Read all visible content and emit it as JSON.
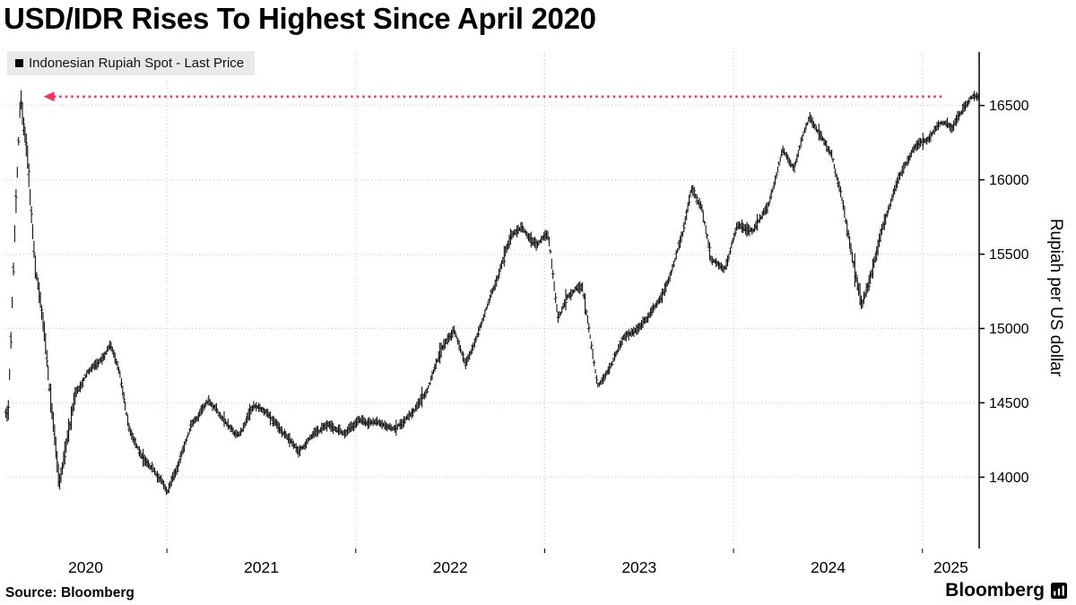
{
  "header": {
    "title": "USD/IDR Rises To Highest Since April 2020"
  },
  "legend": {
    "marker_color": "#000000",
    "label": "Indonesian Rupiah Spot - Last Price"
  },
  "footer": {
    "source": "Source: Bloomberg",
    "brand": "Bloomberg"
  },
  "chart_data": {
    "type": "bar",
    "subtype": "daily-ohlc-price-bars",
    "title": "USD/IDR Rises To Highest Since April 2020",
    "xlabel": "",
    "ylabel": "Rupiah per US dollar",
    "legend_entries": [
      "Indonesian Rupiah Spot - Last Price"
    ],
    "legend_position": "top-left",
    "axis_side": "right",
    "grid": true,
    "x_domain": [
      2020.145,
      2025.3
    ],
    "y_domain": [
      13520,
      16860
    ],
    "y_ticks": [
      14000,
      14500,
      15000,
      15500,
      16000,
      16500
    ],
    "x_ticks": [
      {
        "label": "2020",
        "t": 2020.57
      },
      {
        "label": "2021",
        "t": 2021.5
      },
      {
        "label": "2022",
        "t": 2022.5
      },
      {
        "label": "2023",
        "t": 2023.5
      },
      {
        "label": "2024",
        "t": 2024.5
      },
      {
        "label": "2025",
        "t": 2025.15
      }
    ],
    "year_boundaries": [
      2021,
      2022,
      2023,
      2024,
      2025
    ],
    "annotation": {
      "type": "dotted-arrow-line",
      "value": 16560,
      "t_start": 2020.4,
      "t_end": 2025.11,
      "color": "#f5305a",
      "arrow_direction": "left",
      "meaning": "April 2020 high revisited"
    },
    "series": [
      {
        "name": "Indonesian Rupiah Spot - Last Price",
        "color": "#000000",
        "anchors_t": [
          2020.16,
          2020.19,
          2020.225,
          2020.26,
          2020.3,
          2020.35,
          2020.43,
          2020.47,
          2020.52,
          2020.58,
          2020.64,
          2020.7,
          2020.75,
          2020.8,
          2020.86,
          2020.93,
          2021.0,
          2021.06,
          2021.13,
          2021.22,
          2021.3,
          2021.38,
          2021.46,
          2021.54,
          2021.62,
          2021.7,
          2021.78,
          2021.86,
          2021.94,
          2022.02,
          2022.12,
          2022.22,
          2022.3,
          2022.38,
          2022.46,
          2022.52,
          2022.58,
          2022.66,
          2022.74,
          2022.82,
          2022.88,
          2022.96,
          2023.02,
          2023.07,
          2023.13,
          2023.2,
          2023.28,
          2023.34,
          2023.42,
          2023.5,
          2023.58,
          2023.66,
          2023.73,
          2023.78,
          2023.83,
          2023.88,
          2023.95,
          2024.02,
          2024.1,
          2024.18,
          2024.26,
          2024.32,
          2024.4,
          2024.46,
          2024.52,
          2024.58,
          2024.63,
          2024.68,
          2024.73,
          2024.79,
          2024.85,
          2024.91,
          2024.97,
          2025.04,
          2025.1,
          2025.16,
          2025.21,
          2025.255
        ],
        "anchors_price": [
          14450,
          15500,
          16590,
          16200,
          15450,
          14950,
          13950,
          14200,
          14500,
          14650,
          14750,
          14880,
          14700,
          14350,
          14150,
          14080,
          13940,
          14080,
          14350,
          14520,
          14380,
          14280,
          14480,
          14420,
          14280,
          14170,
          14290,
          14330,
          14280,
          14360,
          14360,
          14340,
          14420,
          14580,
          14890,
          15020,
          14820,
          15030,
          15300,
          15640,
          15720,
          15580,
          15620,
          15080,
          15230,
          15300,
          14680,
          14760,
          14950,
          15010,
          15140,
          15330,
          15620,
          15930,
          15820,
          15480,
          15420,
          15720,
          15680,
          15830,
          16230,
          16080,
          16420,
          16300,
          16180,
          15850,
          15480,
          15160,
          15380,
          15680,
          15920,
          16120,
          16250,
          16310,
          16390,
          16340,
          16480,
          16560
        ]
      }
    ],
    "bar_step_years": 0.0068,
    "noise_seed": 7,
    "bar_color": "#000000",
    "grid_color": "#c9c9c9"
  }
}
